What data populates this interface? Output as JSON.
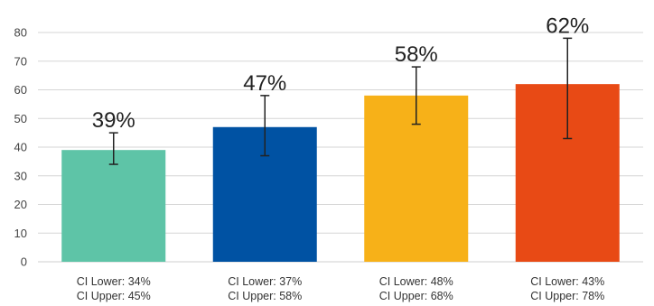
{
  "chart_data": {
    "type": "bar",
    "categories": [
      [
        "CI Lower: 34%",
        "CI Upper: 45%"
      ],
      [
        "CI Lower: 37%",
        "CI Upper: 58%"
      ],
      [
        "CI Lower: 48%",
        "CI Upper: 68%"
      ],
      [
        "CI Lower: 43%",
        "CI Upper: 78%"
      ]
    ],
    "values": [
      39,
      47,
      58,
      62
    ],
    "data_labels": [
      "39%",
      "47%",
      "58%",
      "62%"
    ],
    "ci_lower": [
      34,
      37,
      48,
      43
    ],
    "ci_upper": [
      45,
      58,
      68,
      78
    ],
    "colors": [
      "#5ec4a7",
      "#0052a3",
      "#f7b118",
      "#e84a15"
    ],
    "ylim": [
      0,
      80
    ],
    "yticks": [
      0,
      10,
      20,
      30,
      40,
      50,
      60,
      70,
      80
    ],
    "grid": true,
    "legend": "none"
  }
}
